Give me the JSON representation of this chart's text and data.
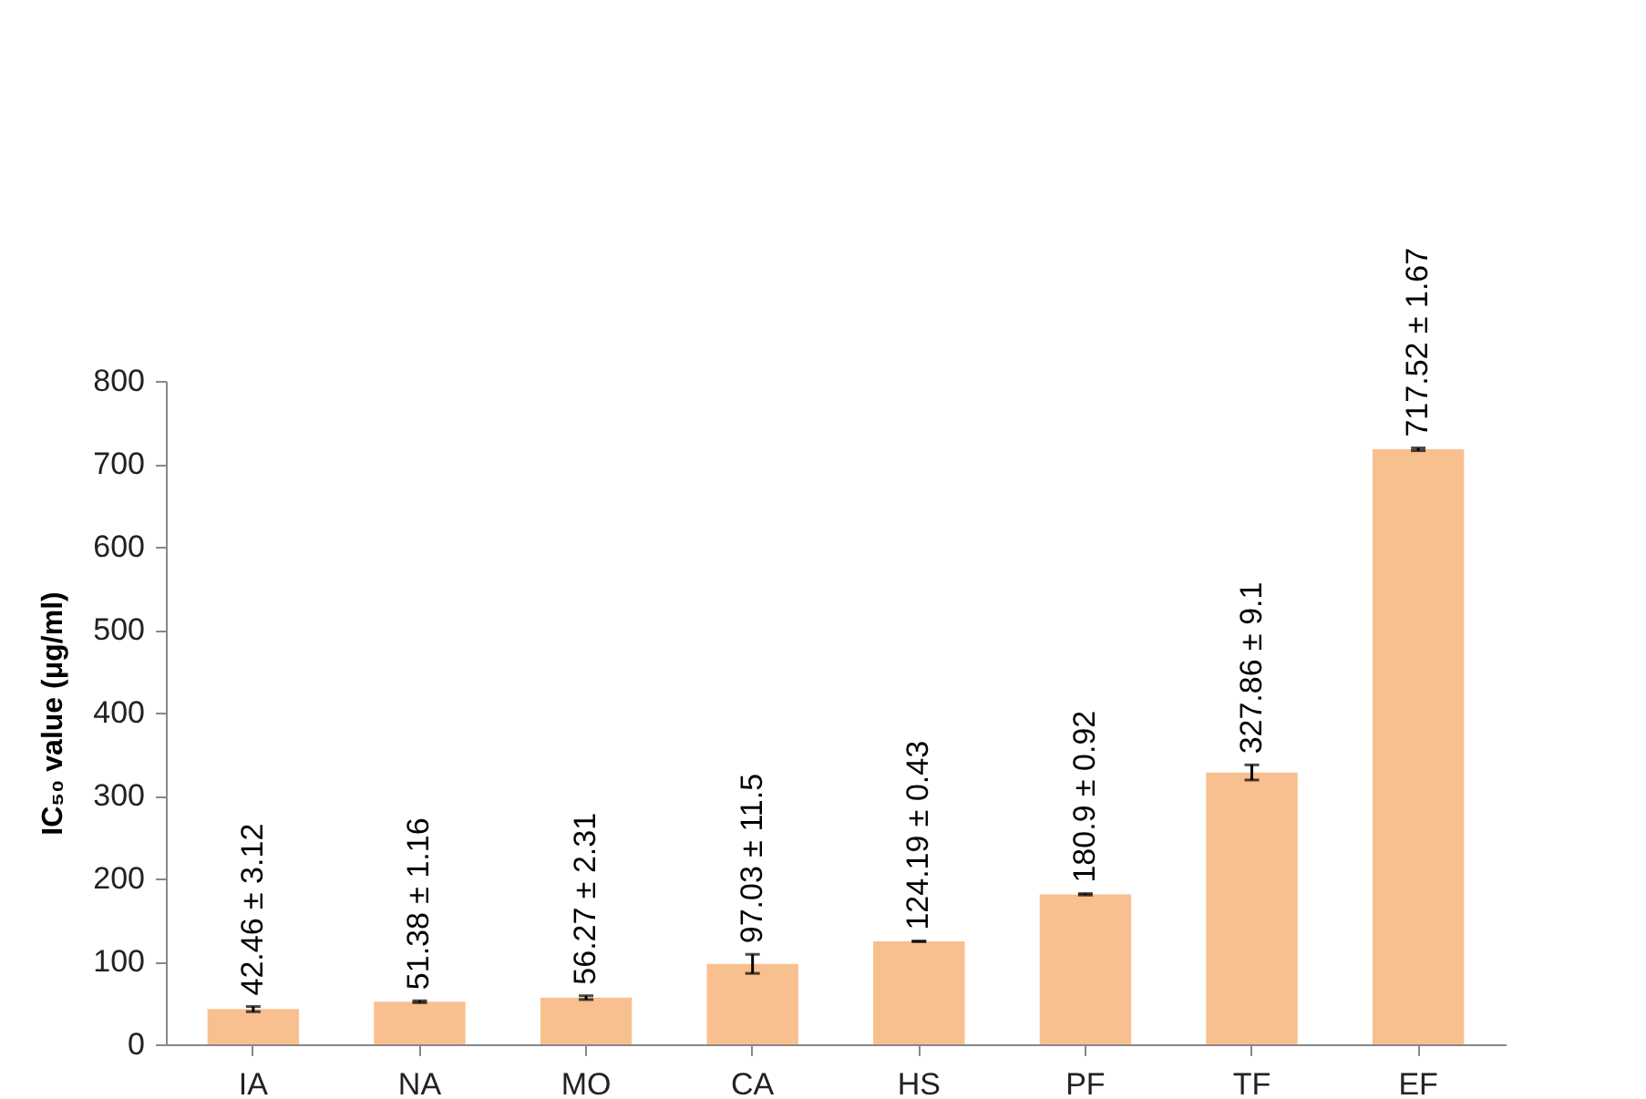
{
  "chart_data": {
    "type": "bar",
    "ylabel": "IC₅₀ value (μg/ml)",
    "categories": [
      "IA",
      "NA",
      "MO",
      "CA",
      "HS",
      "PF",
      "TF",
      "EF"
    ],
    "values": [
      42.46,
      51.38,
      56.27,
      97.03,
      124.19,
      180.9,
      327.86,
      717.52
    ],
    "errors": [
      3.12,
      1.16,
      2.31,
      11.5,
      0.43,
      0.92,
      9.1,
      1.67
    ],
    "value_labels": [
      "42.46 ± 3.12",
      "51.38 ± 1.16",
      "56.27 ± 2.31",
      "97.03 ± 11.5",
      "124.19 ± 0.43",
      "180.9 ± 0.92",
      "327.86 ± 9.1",
      "717.52 ± 1.67"
    ],
    "color": "#f9c08f",
    "ylim": [
      0,
      800
    ],
    "yticks": [
      0,
      100,
      200,
      300,
      400,
      500,
      600,
      700,
      800
    ],
    "grid": false
  }
}
